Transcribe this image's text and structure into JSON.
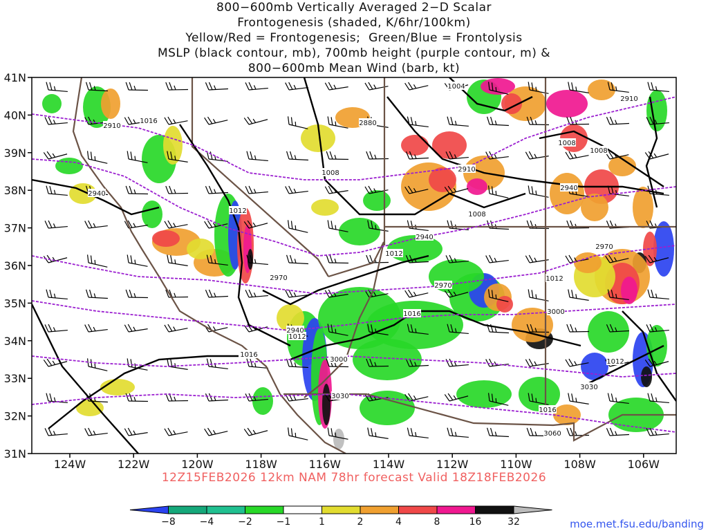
{
  "title_lines": [
    "800−600mb Vertically Averaged 2−D Scalar",
    "Frontogenesis (shaded, K/6hr/100km)",
    "Yellow/Red = Frontogenesis;  Green/Blue = Frontolysis",
    "MSLP (black contour, mb), 700mb height (purple contour, m) &",
    "800−600mb Mean Wind (barb, kt)"
  ],
  "valid_line": "12Z15FEB2026 12km NAM 78hr forecast Valid 18Z18FEB2026",
  "url": "moe.met.fsu.edu/banding",
  "lat_labels": [
    "41N",
    "40N",
    "39N",
    "38N",
    "37N",
    "36N",
    "35N",
    "34N",
    "33N",
    "32N",
    "31N"
  ],
  "lon_labels": [
    "124W",
    "122W",
    "120W",
    "118W",
    "116W",
    "114W",
    "112W",
    "110W",
    "108W",
    "106W"
  ],
  "colorbar": {
    "labels": [
      "−8",
      "−4",
      "−2",
      "−1",
      "1",
      "2",
      "4",
      "8",
      "16",
      "32"
    ],
    "colors": [
      "#2b43f0",
      "#15a87a",
      "#20c090",
      "#28d828",
      "#ffffff",
      "#e2dc30",
      "#f0a030",
      "#f04848",
      "#f01890",
      "#111111",
      "#bbbbbb"
    ]
  },
  "mslp_labels": [
    "1016",
    "1008",
    "1004",
    "1008",
    "1008",
    "1008",
    "1012",
    "1012",
    "1012",
    "1016",
    "1012",
    "1016",
    "1012",
    "1016"
  ],
  "height_labels": [
    "2910",
    "2880",
    "2910",
    "2910",
    "2940",
    "2940",
    "2940",
    "2970",
    "2970",
    "2940",
    "2970",
    "3000",
    "3000",
    "3030",
    "3030",
    "3060"
  ],
  "shade_colors": {
    "b": "#2b43f0",
    "g": "#20c090",
    "lg": "#28d828",
    "y": "#e2dc30",
    "o": "#f0a030",
    "r": "#f04848",
    "m": "#f01890",
    "k": "#111111",
    "gr": "#bbbbbb"
  }
}
